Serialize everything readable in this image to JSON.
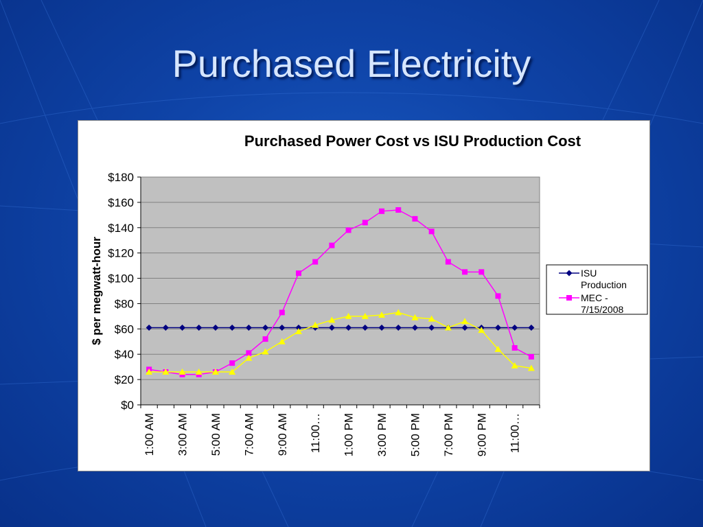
{
  "slide": {
    "title": "Purchased Electricity"
  },
  "chart_data": {
    "type": "line",
    "title": "Purchased Power Cost vs ISU Production Cost",
    "ylabel": "$ per megwatt-hour",
    "xlabel": "",
    "ylim": [
      0,
      180
    ],
    "y_ticks": [
      "$0",
      "$20",
      "$40",
      "$60",
      "$80",
      "$100",
      "$120",
      "$140",
      "$160",
      "$180"
    ],
    "x_tick_labels": [
      "1:00 AM",
      "3:00 AM",
      "5:00 AM",
      "7:00 AM",
      "9:00 AM",
      "11:00…",
      "1:00 PM",
      "3:00 PM",
      "5:00 PM",
      "7:00 PM",
      "9:00 PM",
      "11:00…"
    ],
    "grid": true,
    "legend_position": "right",
    "colors": {
      "plot_background": "#c0c0c0",
      "frame": "#ffffff"
    },
    "series": [
      {
        "name": "ISU Production",
        "color": "#000080",
        "marker": "diamond",
        "values": [
          61,
          61,
          61,
          61,
          61,
          61,
          61,
          61,
          61,
          61,
          61,
          61,
          61,
          61,
          61,
          61,
          61,
          61,
          61,
          61,
          61,
          61,
          61,
          61
        ]
      },
      {
        "name": "MEC - 7/15/2008",
        "color": "#ff00ff",
        "marker": "square",
        "values": [
          28,
          26,
          24,
          24,
          26,
          33,
          41,
          52,
          73,
          104,
          113,
          126,
          138,
          144,
          153,
          154,
          147,
          137,
          113,
          105,
          105,
          86,
          45,
          38
        ]
      },
      {
        "name": "",
        "color": "#ffff00",
        "marker": "triangle",
        "values": [
          26,
          26,
          26,
          26,
          26,
          26,
          37,
          42,
          50,
          58,
          63,
          67,
          70,
          70,
          71,
          73,
          69,
          68,
          61,
          66,
          59,
          44,
          31,
          29
        ]
      }
    ],
    "legend_entries": [
      "ISU Production",
      "MEC - 7/15/2008"
    ]
  }
}
